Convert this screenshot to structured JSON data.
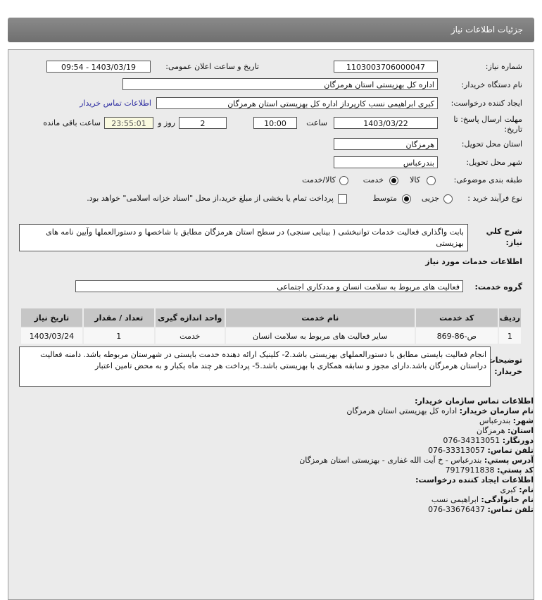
{
  "header": {
    "title": "جزئیات اطلاعات نیاز"
  },
  "form": {
    "need_number_label": "شماره نیاز:",
    "need_number": "1103003706000047",
    "announce_label": "تاریخ و ساعت اعلان عمومی:",
    "announce_value": "1403/03/19 - 09:54",
    "buyer_org_label": "نام دستگاه خریدار:",
    "buyer_org": "اداره کل بهزیستی استان هرمزگان",
    "creator_label": "ایجاد کننده درخواست:",
    "creator": "کبری  ابراهیمی نسب کارپرداز اداره کل بهزیستی استان هرمزگان",
    "contact_link": "اطلاعات تماس خریدار",
    "deadline_label_1": "مهلت ارسال پاسخ: تا",
    "deadline_label_2": "تاریخ:",
    "deadline_date": "1403/03/22",
    "time_label": "ساعت",
    "deadline_time": "10:00",
    "days": "2",
    "days_label": "روز و",
    "remaining": "23:55:01",
    "remaining_label": "ساعت باقی مانده",
    "province_label": "استان محل تحویل:",
    "province": "هرمزگان",
    "city_label": "شهر محل تحویل:",
    "city": "بندرعباس",
    "category_label": "طبقه بندی موضوعی:",
    "category_options": [
      "کالا",
      "خدمت",
      "کالا/خدمت"
    ],
    "category_selected": "خدمت",
    "process_label": "نوع فرآیند خرید :",
    "process_options": [
      "جزیی",
      "متوسط"
    ],
    "process_selected": "متوسط",
    "treasury_text": "پرداخت تمام یا بخشی از مبلغ خرید،از محل \"اسناد خزانه اسلامی\" خواهد بود.",
    "treasury_checked": false
  },
  "summary": {
    "label_1": "شرح کلي",
    "label_2": "نیاز:",
    "text": "بابت واگذاری فعالیت خدمات توانبخشی ( بینایی سنجی) در سطح استان هرمزگان مطابق با شاخصها و دستورالعملها وآیین نامه های بهزیستی"
  },
  "services": {
    "heading": "اطلاعات خدمات مورد نیاز",
    "group_label": "گروه خدمت:",
    "group": "فعالیت های مربوط به سلامت انسان و مددکاری اجتماعی",
    "columns": [
      "ردیف",
      "کد خدمت",
      "نام خدمت",
      "واحد اندازه گیری",
      "تعداد / مقدار",
      "تاریخ نیاز"
    ],
    "rows": [
      [
        "1",
        "ص-86-869",
        "سایر فعالیت های مربوط به سلامت انسان",
        "خدمت",
        "1",
        "1403/03/24"
      ]
    ]
  },
  "notes": {
    "label_1": "توضیحات",
    "label_2": "خریدار:",
    "text": "انجام فعالیت بایستی مطابق با دستورالعملهای بهزیستی باشد.2- کلینیک ارائه دهنده خدمت بایستی در شهرستان مربوطه باشد. دامنه فعالیت دراستان هرمزگان باشد.دارای مجوز و سابقه همکاری با بهزیستی باشد.5- پرداخت هر چند ماه یکبار و به محض تامین اعتبار"
  },
  "contact": {
    "heading": "اطلاعات تماس سازمان خریدار:",
    "org_label": "نام سازمان خریدار:",
    "org": "اداره کل بهزیستی استان هرمزگان",
    "city_label": "شهر:",
    "city": "بندرعباس",
    "province_label": "استان:",
    "province": "هرمزگان",
    "fax_label": "دورنگار:",
    "fax": "076-34313051",
    "phone_label": "تلفن تماس:",
    "phone": "076-33313057",
    "address_label": "آدرس پستي:",
    "address": "بندرعباس - خ آیت الله غفاری - بهزیستی استان هرمزگان",
    "postal_label": "کد پستي:",
    "postal": "7917911838",
    "creator_heading": "اطلاعات ایجاد کننده درخواست:",
    "name_label": "نام:",
    "name": "کبری",
    "family_label": "نام خانوادگی:",
    "family": "ابراهیمی نسب",
    "creator_phone_label": "تلفن تماس:",
    "creator_phone": "076-33676437"
  }
}
